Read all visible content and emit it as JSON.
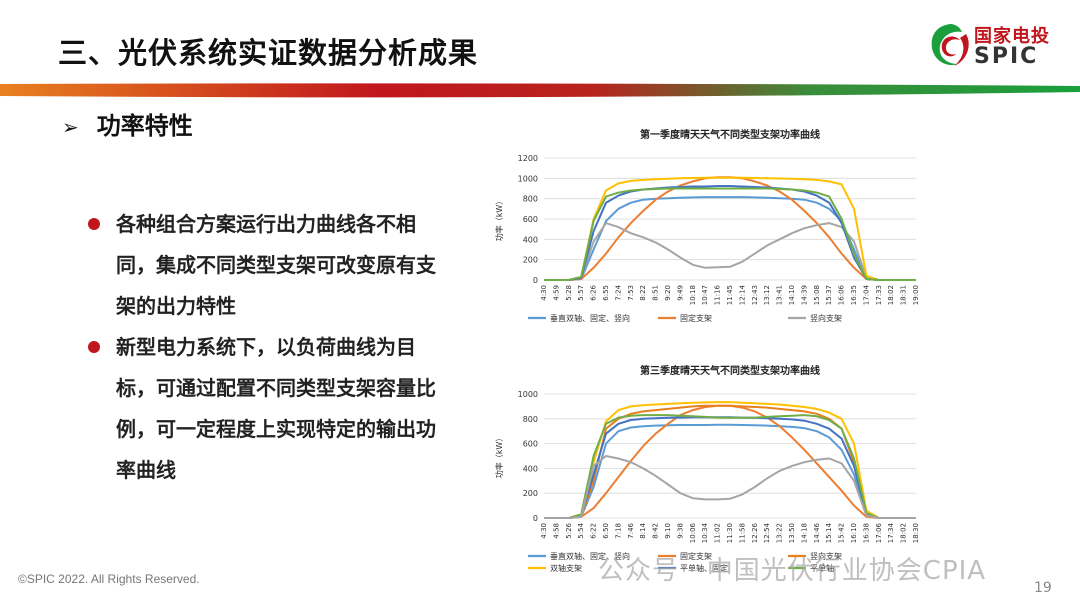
{
  "slide": {
    "title": "三、光伏系统实证数据分析成果",
    "logo_cn": "国家电投",
    "logo_en": "SPIC",
    "subtitle": "功率特性",
    "bullets": [
      "各种组合方案运行出力曲线各不相同，集成不同类型支架可改变原有支架的出力特性",
      "新型电力系统下，以负荷曲线为目标，可通过配置不同类型支架容量比例，可一定程度上实现特定的输出功率曲线"
    ],
    "footer": "©SPIC 2022. All Rights Reserved.",
    "watermark": "公众号 · 中国光伏行业协会CPIA",
    "page_number": "19",
    "colors": {
      "accent_red": "#c0161d",
      "accent_green": "#1a9f3c",
      "accent_orange": "#e8801f"
    }
  },
  "chart_data": [
    {
      "type": "line",
      "title": "第一季度晴天天气不同类型支架功率曲线",
      "ylabel": "功率（kW）",
      "ylim": [
        0,
        1200
      ],
      "yticks": [
        0,
        200,
        400,
        600,
        800,
        1000,
        1200
      ],
      "xticks": [
        "4:30",
        "4:59",
        "5:28",
        "5:57",
        "6:26",
        "6:55",
        "7:24",
        "7:53",
        "8:22",
        "8:51",
        "9:20",
        "9:49",
        "10:18",
        "10:47",
        "11:16",
        "11:45",
        "12:14",
        "12:43",
        "13:12",
        "13:41",
        "14:10",
        "14:39",
        "15:08",
        "15:37",
        "16:06",
        "16:35",
        "17:04",
        "17:33",
        "18:02",
        "18:31",
        "19:00"
      ],
      "grid": true,
      "legend_position": "bottom",
      "series": [
        {
          "name": "垂直双轴、固定、竖向",
          "color": "#5b9bd5",
          "values": [
            0,
            0,
            0,
            10,
            300,
            580,
            700,
            760,
            790,
            800,
            805,
            810,
            812,
            815,
            815,
            815,
            815,
            812,
            810,
            805,
            800,
            790,
            760,
            700,
            580,
            300,
            10,
            0,
            0,
            0,
            0
          ]
        },
        {
          "name": "固定支架",
          "color": "#ed7d31",
          "values": [
            0,
            0,
            0,
            10,
            120,
            260,
            420,
            560,
            680,
            790,
            870,
            930,
            970,
            1000,
            1010,
            1010,
            1000,
            970,
            930,
            870,
            790,
            680,
            560,
            420,
            260,
            120,
            10,
            0,
            0,
            0,
            0
          ]
        },
        {
          "name": "竖向支架",
          "color": "#a5a5a5",
          "values": [
            0,
            0,
            0,
            20,
            380,
            560,
            520,
            460,
            420,
            370,
            300,
            220,
            150,
            120,
            125,
            130,
            180,
            260,
            340,
            400,
            460,
            510,
            540,
            560,
            520,
            380,
            20,
            0,
            0,
            0,
            0
          ]
        },
        {
          "name": "",
          "color": "#ffc000",
          "values": [
            0,
            0,
            0,
            30,
            600,
            880,
            950,
            975,
            985,
            990,
            995,
            1000,
            1003,
            1005,
            1005,
            1005,
            1005,
            1003,
            1000,
            998,
            995,
            990,
            985,
            970,
            940,
            700,
            40,
            0,
            0,
            0,
            0
          ]
        },
        {
          "name": "",
          "color": "#4472c4",
          "values": [
            0,
            0,
            0,
            20,
            480,
            760,
            830,
            870,
            890,
            900,
            910,
            915,
            920,
            920,
            925,
            925,
            920,
            915,
            910,
            900,
            890,
            870,
            830,
            760,
            560,
            220,
            10,
            0,
            0,
            0,
            0
          ]
        },
        {
          "name": "",
          "color": "#70ad47",
          "values": [
            0,
            0,
            0,
            30,
            580,
            820,
            860,
            880,
            890,
            895,
            900,
            900,
            900,
            900,
            900,
            900,
            900,
            900,
            900,
            895,
            890,
            880,
            860,
            820,
            600,
            250,
            10,
            0,
            0,
            0,
            0
          ]
        }
      ]
    },
    {
      "type": "line",
      "title": "第三季度晴天天气不同类型支架功率曲线",
      "ylabel": "功率（kW）",
      "ylim": [
        0,
        1000
      ],
      "yticks": [
        0,
        200,
        400,
        600,
        800,
        1000
      ],
      "xticks": [
        "4:30",
        "4:58",
        "5:26",
        "5:54",
        "6:22",
        "6:50",
        "7:18",
        "7:46",
        "8:14",
        "8:42",
        "9:10",
        "9:38",
        "10:06",
        "10:34",
        "11:02",
        "11:30",
        "11:58",
        "12:26",
        "12:54",
        "13:22",
        "13:50",
        "14:18",
        "14:46",
        "15:14",
        "15:42",
        "16:10",
        "16:38",
        "17:06",
        "17:34",
        "18:02",
        "18:30"
      ],
      "grid": true,
      "legend_position": "bottom",
      "series": [
        {
          "name": "垂直双轴、固定、竖向",
          "color": "#5b9bd5",
          "values": [
            0,
            0,
            0,
            10,
            250,
            600,
            700,
            730,
            740,
            745,
            748,
            750,
            750,
            750,
            752,
            752,
            750,
            748,
            745,
            740,
            735,
            725,
            700,
            650,
            550,
            350,
            30,
            0,
            0,
            0,
            0
          ]
        },
        {
          "name": "固定支架",
          "color": "#ed7d31",
          "values": [
            0,
            0,
            0,
            10,
            80,
            200,
            330,
            460,
            580,
            680,
            760,
            830,
            870,
            895,
            905,
            905,
            890,
            860,
            810,
            740,
            650,
            550,
            440,
            330,
            220,
            100,
            10,
            0,
            0,
            0,
            0
          ]
        },
        {
          "name": "竖向支架",
          "color": "#e8801f",
          "values": [
            0,
            0,
            0,
            10,
            300,
            720,
            800,
            840,
            860,
            870,
            880,
            890,
            900,
            905,
            905,
            905,
            900,
            895,
            890,
            880,
            870,
            860,
            840,
            800,
            720,
            450,
            30,
            0,
            0,
            0,
            0
          ]
        },
        {
          "name": "双轴支架",
          "color": "#ffc000",
          "values": [
            0,
            0,
            0,
            30,
            450,
            780,
            870,
            900,
            910,
            915,
            920,
            925,
            930,
            932,
            935,
            935,
            930,
            925,
            920,
            915,
            905,
            895,
            880,
            850,
            800,
            600,
            60,
            0,
            0,
            0,
            0
          ]
        },
        {
          "name": "平单轴、固定",
          "color": "#4472c4",
          "values": [
            0,
            0,
            0,
            20,
            350,
            680,
            760,
            790,
            800,
            805,
            808,
            810,
            812,
            812,
            812,
            812,
            810,
            808,
            805,
            800,
            795,
            785,
            760,
            720,
            640,
            420,
            30,
            0,
            0,
            0,
            0
          ]
        },
        {
          "name": "平单轴",
          "color": "#70ad47",
          "values": [
            0,
            0,
            0,
            30,
            500,
            760,
            810,
            825,
            830,
            830,
            830,
            825,
            820,
            815,
            810,
            808,
            808,
            810,
            815,
            820,
            825,
            830,
            820,
            790,
            720,
            480,
            40,
            0,
            0,
            0,
            0
          ]
        },
        {
          "name": "",
          "color": "#a5a5a5",
          "values": [
            0,
            0,
            0,
            10,
            420,
            500,
            480,
            450,
            400,
            340,
            270,
            200,
            160,
            150,
            150,
            155,
            190,
            250,
            320,
            380,
            420,
            450,
            470,
            480,
            440,
            300,
            20,
            0,
            0,
            0,
            0
          ]
        }
      ]
    }
  ]
}
